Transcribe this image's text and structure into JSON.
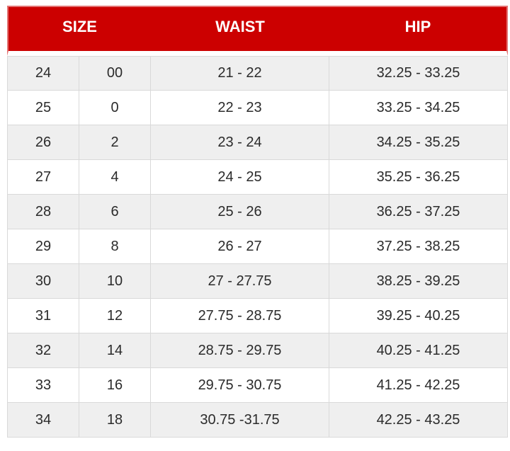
{
  "colors": {
    "header_bg": "#cc0000",
    "header_text": "#ffffff",
    "row_alt_bg": "#efefef",
    "row_bg": "#ffffff",
    "border": "#d9d9d9",
    "text": "#2b2b2b"
  },
  "table": {
    "headers": [
      "SIZE",
      "WAIST",
      "HIP"
    ],
    "rows": [
      {
        "size_numeric": "24",
        "size_alpha": "00",
        "waist": "21 - 22",
        "hip": "32.25 - 33.25"
      },
      {
        "size_numeric": "25",
        "size_alpha": "0",
        "waist": "22 - 23",
        "hip": "33.25 - 34.25"
      },
      {
        "size_numeric": "26",
        "size_alpha": "2",
        "waist": "23 - 24",
        "hip": "34.25 - 35.25"
      },
      {
        "size_numeric": "27",
        "size_alpha": "4",
        "waist": "24 - 25",
        "hip": "35.25 - 36.25"
      },
      {
        "size_numeric": "28",
        "size_alpha": "6",
        "waist": "25 - 26",
        "hip": "36.25 - 37.25"
      },
      {
        "size_numeric": "29",
        "size_alpha": "8",
        "waist": "26 - 27",
        "hip": "37.25 - 38.25"
      },
      {
        "size_numeric": "30",
        "size_alpha": "10",
        "waist": "27 - 27.75",
        "hip": "38.25 - 39.25"
      },
      {
        "size_numeric": "31",
        "size_alpha": "12",
        "waist": "27.75 - 28.75",
        "hip": "39.25 - 40.25"
      },
      {
        "size_numeric": "32",
        "size_alpha": "14",
        "waist": "28.75 - 29.75",
        "hip": "40.25 - 41.25"
      },
      {
        "size_numeric": "33",
        "size_alpha": "16",
        "waist": "29.75 - 30.75",
        "hip": "41.25 - 42.25"
      },
      {
        "size_numeric": "34",
        "size_alpha": "18",
        "waist": "30.75 -31.75",
        "hip": "42.25 - 43.25"
      }
    ]
  }
}
